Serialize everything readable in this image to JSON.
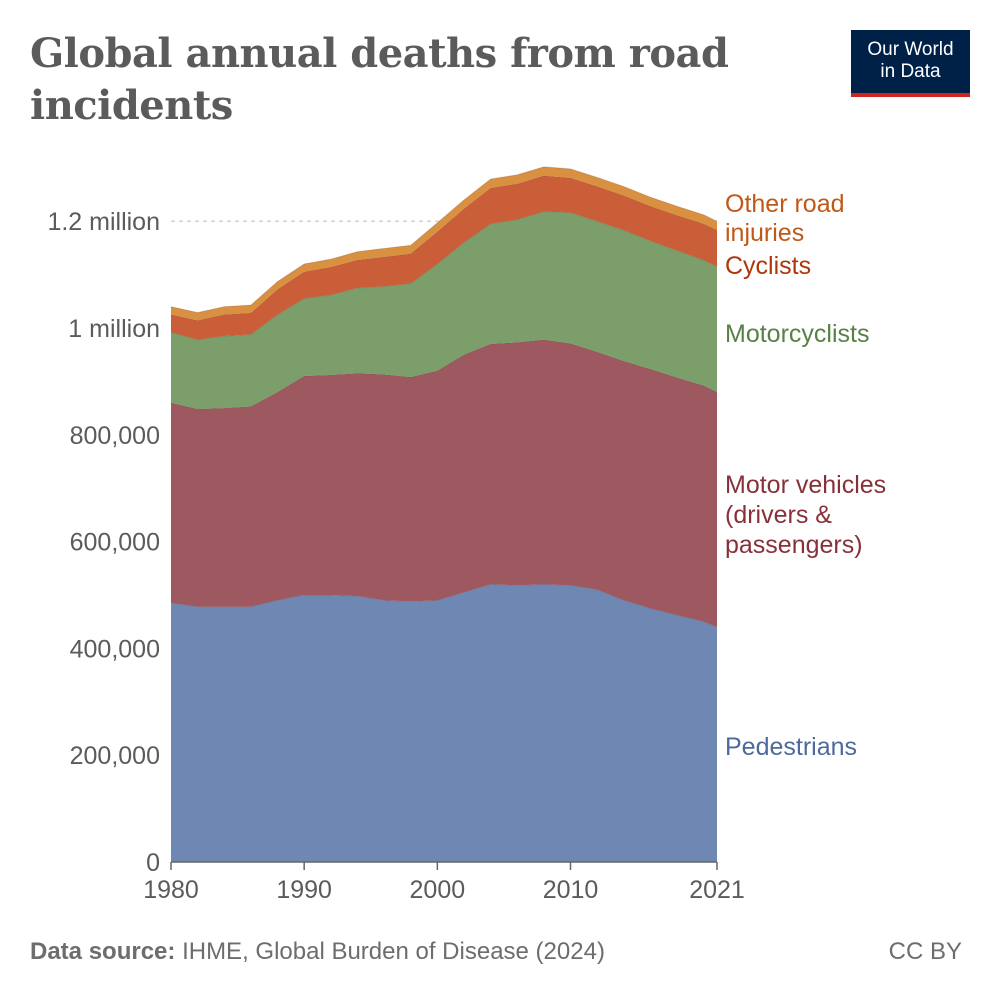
{
  "header": {
    "title": "Global annual deaths from road incidents",
    "logo_line1": "Our World",
    "logo_line2": "in Data"
  },
  "footer": {
    "source_label": "Data source:",
    "source_text": "IHME, Global Burden of Disease (2024)",
    "license": "CC BY"
  },
  "colors": {
    "pedestrians": "#6f88b3",
    "motor_vehicles": "#9e5960",
    "motorcyclists": "#7b9e6b",
    "cyclists": "#c95e38",
    "other": "#d99040",
    "label_pedestrians": "#4c6a9c",
    "label_motor_vehicles": "#883039",
    "label_motorcyclists": "#578145",
    "label_cyclists": "#b13507",
    "label_other": "#c05917"
  },
  "chart_data": {
    "type": "area",
    "stacked": true,
    "x": [
      1980,
      1982,
      1984,
      1986,
      1988,
      1990,
      1992,
      1994,
      1996,
      1998,
      2000,
      2002,
      2004,
      2006,
      2008,
      2010,
      2012,
      2014,
      2016,
      2018,
      2020,
      2021
    ],
    "x_ticks": [
      "1980",
      "1990",
      "2000",
      "2010",
      "2021"
    ],
    "y_ticks": [
      "0",
      "200,000",
      "400,000",
      "600,000",
      "800,000",
      "1 million",
      "1.2 million"
    ],
    "ylim": [
      0,
      1300000
    ],
    "xlim": [
      1980,
      2021
    ],
    "grid": "horizontal dashed",
    "legend": "inline labels at right end",
    "series": [
      {
        "name": "Pedestrians",
        "values": [
          485000,
          478000,
          478000,
          478000,
          490000,
          500000,
          500000,
          498000,
          490000,
          488000,
          490000,
          505000,
          520000,
          518000,
          520000,
          518000,
          510000,
          490000,
          475000,
          462000,
          450000,
          440000
        ]
      },
      {
        "name": "Motor vehicles (drivers & passengers)",
        "values": [
          375000,
          370000,
          372000,
          375000,
          390000,
          410000,
          412000,
          417000,
          423000,
          420000,
          430000,
          445000,
          450000,
          455000,
          458000,
          453000,
          445000,
          448000,
          448000,
          445000,
          442000,
          440000
        ]
      },
      {
        "name": "Motorcyclists",
        "values": [
          132000,
          130000,
          135000,
          135000,
          145000,
          145000,
          150000,
          160000,
          165000,
          175000,
          200000,
          210000,
          225000,
          230000,
          240000,
          245000,
          245000,
          245000,
          240000,
          238000,
          235000,
          235000
        ]
      },
      {
        "name": "Cyclists",
        "values": [
          33000,
          36000,
          40000,
          40000,
          47000,
          50000,
          52000,
          52000,
          55000,
          56000,
          60000,
          63000,
          67000,
          67000,
          67000,
          65000,
          65000,
          65000,
          65000,
          66000,
          68000,
          68000
        ]
      },
      {
        "name": "Other road injuries",
        "values": [
          15000,
          15000,
          15000,
          15000,
          15000,
          15000,
          15000,
          16000,
          16000,
          16000,
          17000,
          17000,
          17000,
          17000,
          17000,
          17000,
          17000,
          17000,
          17000,
          17000,
          17000,
          17000
        ]
      }
    ],
    "labels": {
      "other_line1": "Other road",
      "other_line2": "injuries",
      "cyclists": "Cyclists",
      "motorcyclists": "Motorcyclists",
      "motor_line1": "Motor vehicles",
      "motor_line2": "(drivers &",
      "motor_line3": "passengers)",
      "pedestrians": "Pedestrians"
    }
  }
}
